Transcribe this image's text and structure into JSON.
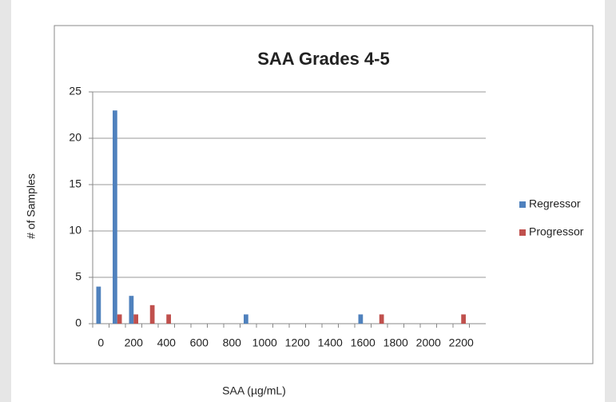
{
  "chart_data": {
    "type": "bar",
    "title": "SAA Grades 4-5",
    "x_label": "SAA (µg/mL)",
    "y_label": "# of Samples",
    "categories": [
      "0",
      null,
      "200",
      null,
      "400",
      null,
      "600",
      null,
      "800",
      null,
      "1000",
      null,
      "1200",
      null,
      "1400",
      null,
      "1600",
      null,
      "1800",
      null,
      "2000",
      null,
      "2200",
      null
    ],
    "series": [
      {
        "name": "Regressor",
        "color": "#4f81bd",
        "values": [
          4,
          23,
          3,
          0,
          0,
          0,
          0,
          0,
          0,
          1,
          0,
          0,
          0,
          0,
          0,
          0,
          1,
          0,
          0,
          0,
          0,
          0,
          0,
          0
        ]
      },
      {
        "name": "Progressor",
        "color": "#c0504d",
        "values": [
          0,
          1,
          1,
          2,
          1,
          0,
          0,
          0,
          0,
          0,
          0,
          0,
          0,
          0,
          0,
          0,
          0,
          1,
          0,
          0,
          0,
          0,
          1,
          0
        ]
      }
    ],
    "ylim": [
      0,
      25
    ],
    "yticks": [
      0,
      5,
      10,
      15,
      20,
      25
    ],
    "grid": true,
    "legend": "right"
  }
}
